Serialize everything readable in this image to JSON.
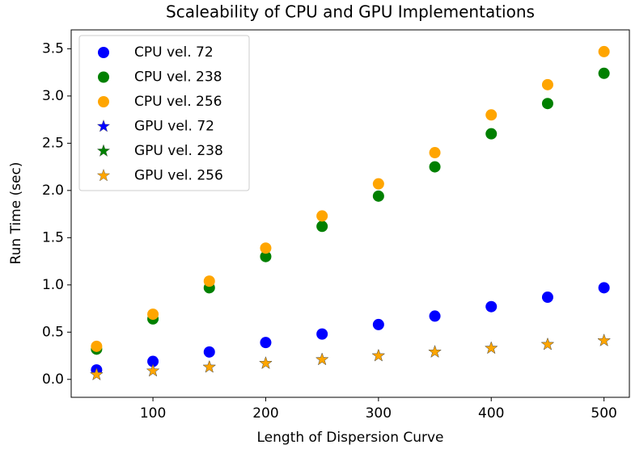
{
  "chart_data": {
    "type": "scatter",
    "title": "Scaleability of CPU and GPU Implementations",
    "xlabel": "Length of Dispersion Curve",
    "ylabel": "Run Time (sec)",
    "x": [
      50,
      100,
      150,
      200,
      250,
      300,
      350,
      400,
      450,
      500
    ],
    "series": [
      {
        "name": "CPU vel. 72",
        "color": "#0000ff",
        "marker": "circle",
        "values": [
          0.1,
          0.19,
          0.29,
          0.39,
          0.48,
          0.58,
          0.67,
          0.77,
          0.87,
          0.97
        ]
      },
      {
        "name": "CPU vel. 238",
        "color": "#008000",
        "marker": "circle",
        "values": [
          0.32,
          0.64,
          0.97,
          1.3,
          1.62,
          1.94,
          2.25,
          2.6,
          2.92,
          3.24
        ]
      },
      {
        "name": "CPU vel. 256",
        "color": "#ffa500",
        "marker": "circle",
        "values": [
          0.35,
          0.69,
          1.04,
          1.39,
          1.73,
          2.07,
          2.4,
          2.8,
          3.12,
          3.47
        ]
      },
      {
        "name": "GPU vel. 72",
        "color": "#0000ff",
        "marker": "star",
        "values": [
          0.05,
          0.09,
          0.13,
          0.17,
          0.21,
          0.25,
          0.29,
          0.33,
          0.37,
          0.41
        ]
      },
      {
        "name": "GPU vel. 238",
        "color": "#008000",
        "marker": "star",
        "values": [
          0.05,
          0.09,
          0.13,
          0.17,
          0.21,
          0.25,
          0.29,
          0.33,
          0.37,
          0.41
        ]
      },
      {
        "name": "GPU vel. 256",
        "color": "#ffa500",
        "marker": "star",
        "values": [
          0.05,
          0.09,
          0.13,
          0.17,
          0.21,
          0.25,
          0.29,
          0.33,
          0.37,
          0.41
        ]
      }
    ],
    "xlim": [
      27.5,
      522.5
    ],
    "xticks": [
      100,
      200,
      300,
      400,
      500
    ],
    "ylim": [
      -0.19,
      3.7
    ],
    "yticks": [
      {
        "value": 0,
        "label": "0.0"
      },
      0.5,
      {
        "value": 1,
        "label": "1.0"
      },
      1.5,
      {
        "value": 2,
        "label": "2.0"
      },
      2.5,
      {
        "value": 3,
        "label": "3.0"
      },
      3.5
    ],
    "legend": "upper left"
  }
}
